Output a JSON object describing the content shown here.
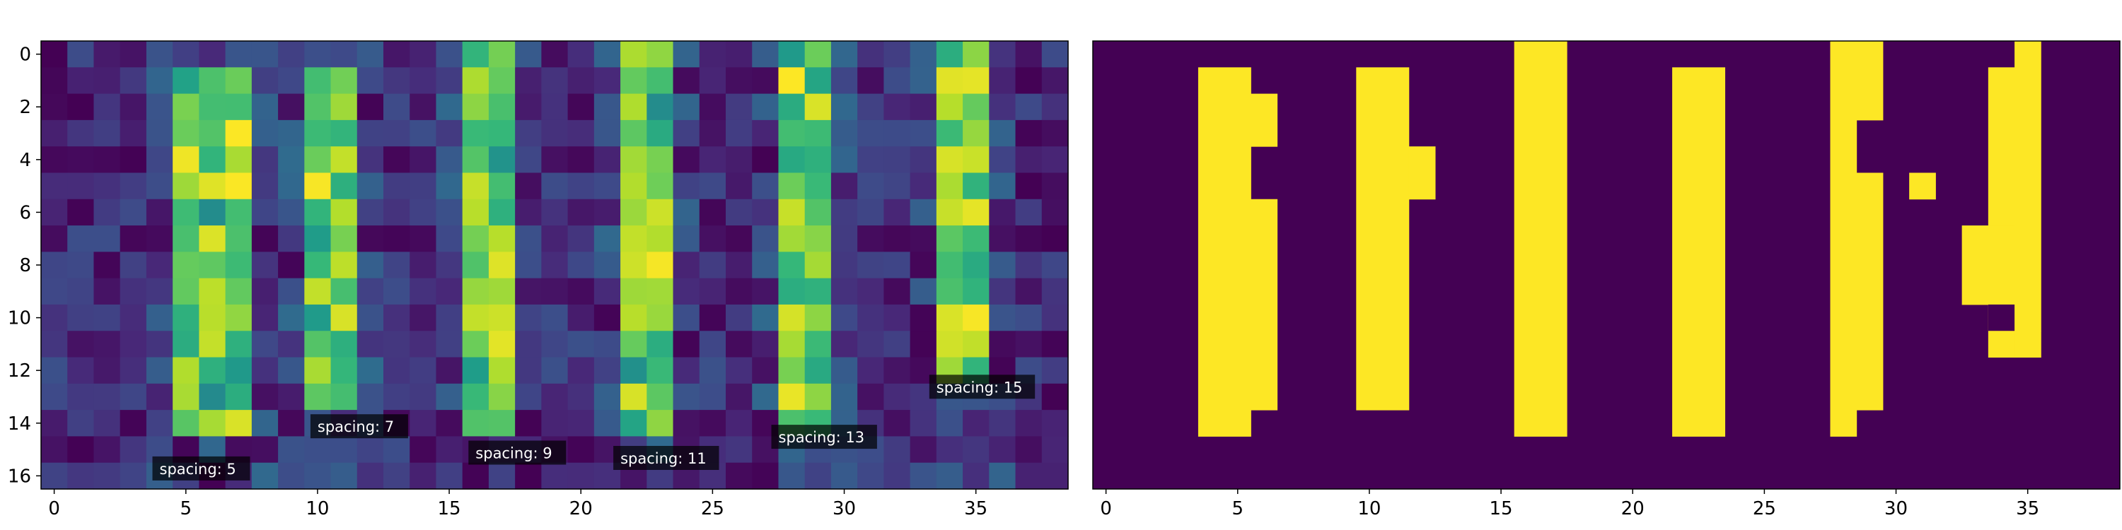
{
  "chart_data": [
    {
      "type": "heatmap",
      "panel": "left",
      "colormap": "viridis",
      "description_scale": "values 0 to 1, yellow = high",
      "xlim": [
        -0.5,
        38.5
      ],
      "ylim": [
        16.5,
        -0.5
      ],
      "xticks": [
        0,
        5,
        10,
        15,
        20,
        25,
        30,
        35
      ],
      "yticks": [
        0,
        2,
        4,
        6,
        8,
        10,
        12,
        14,
        16
      ],
      "grid": false,
      "stripes": [
        {
          "label": "spacing: 5",
          "x_center": 5.5,
          "width": 3,
          "rows": [
            1,
            14
          ],
          "label_pos": [
            4,
            15.8
          ]
        },
        {
          "label": "spacing: 7",
          "x_center": 10.5,
          "width": 2,
          "rows": [
            1,
            13
          ],
          "label_pos": [
            10,
            14.2
          ]
        },
        {
          "label": "spacing: 9",
          "x_center": 16.5,
          "width": 2,
          "rows": [
            0,
            14
          ],
          "label_pos": [
            16,
            15.2
          ]
        },
        {
          "label": "spacing: 11",
          "x_center": 22.5,
          "width": 2,
          "rows": [
            0,
            14
          ],
          "label_pos": [
            21.5,
            15.4
          ]
        },
        {
          "label": "spacing: 13",
          "x_center": 28.5,
          "width": 2,
          "rows": [
            0,
            14
          ],
          "label_pos": [
            27.5,
            14.6
          ]
        },
        {
          "label": "spacing: 15",
          "x_center": 34.5,
          "width": 2,
          "rows": [
            0,
            12
          ],
          "label_pos": [
            33.5,
            12.7
          ]
        }
      ]
    },
    {
      "type": "heatmap",
      "panel": "right",
      "colormap": "binary-viridis",
      "xlim": [
        -0.5,
        38.5
      ],
      "ylim": [
        16.5,
        -0.5
      ],
      "xticks": [
        0,
        5,
        10,
        15,
        20,
        25,
        30,
        35
      ],
      "grid": false,
      "mask_rectangles": [
        {
          "x": [
            3.5,
            5.5
          ],
          "y": [
            0.5,
            14.5
          ]
        },
        {
          "x": [
            5.5,
            6.5
          ],
          "y": [
            1.5,
            3.5
          ]
        },
        {
          "x": [
            5.5,
            6.5
          ],
          "y": [
            5.5,
            13.5
          ]
        },
        {
          "x": [
            9.5,
            11.5
          ],
          "y": [
            0.5,
            13.5
          ]
        },
        {
          "x": [
            11.5,
            12.5
          ],
          "y": [
            3.5,
            5.5
          ]
        },
        {
          "x": [
            15.5,
            17.5
          ],
          "y": [
            -0.5,
            14.5
          ]
        },
        {
          "x": [
            21.5,
            23.5
          ],
          "y": [
            0.5,
            14.5
          ]
        },
        {
          "x": [
            27.5,
            28.5
          ],
          "y": [
            -0.5,
            14.5
          ]
        },
        {
          "x": [
            28.5,
            29.5
          ],
          "y": [
            -0.5,
            2.5
          ]
        },
        {
          "x": [
            28.5,
            29.5
          ],
          "y": [
            4.5,
            13.5
          ]
        },
        {
          "x": [
            30.5,
            31.5
          ],
          "y": [
            4.5,
            5.5
          ]
        },
        {
          "x": [
            34.5,
            35.5
          ],
          "y": [
            -0.5,
            10.5
          ]
        },
        {
          "x": [
            33.5,
            34.5
          ],
          "y": [
            0.5,
            6.5
          ]
        },
        {
          "x": [
            32.5,
            33.5
          ],
          "y": [
            6.5,
            9.5
          ]
        },
        {
          "x": [
            33.5,
            34.5
          ],
          "y": [
            6.5,
            11.5
          ]
        },
        {
          "x": [
            34.5,
            35.5
          ],
          "y": [
            10.5,
            11.5
          ]
        }
      ],
      "holes": [
        {
          "x": [
            33.5,
            34.5
          ],
          "y": [
            9.5,
            10.5
          ]
        }
      ]
    }
  ],
  "colors": {
    "dark": "#440154",
    "yellow": "#fde725",
    "green": "#95d840",
    "teal": "#21918c",
    "blue": "#3b528b",
    "purple": "#482878"
  }
}
